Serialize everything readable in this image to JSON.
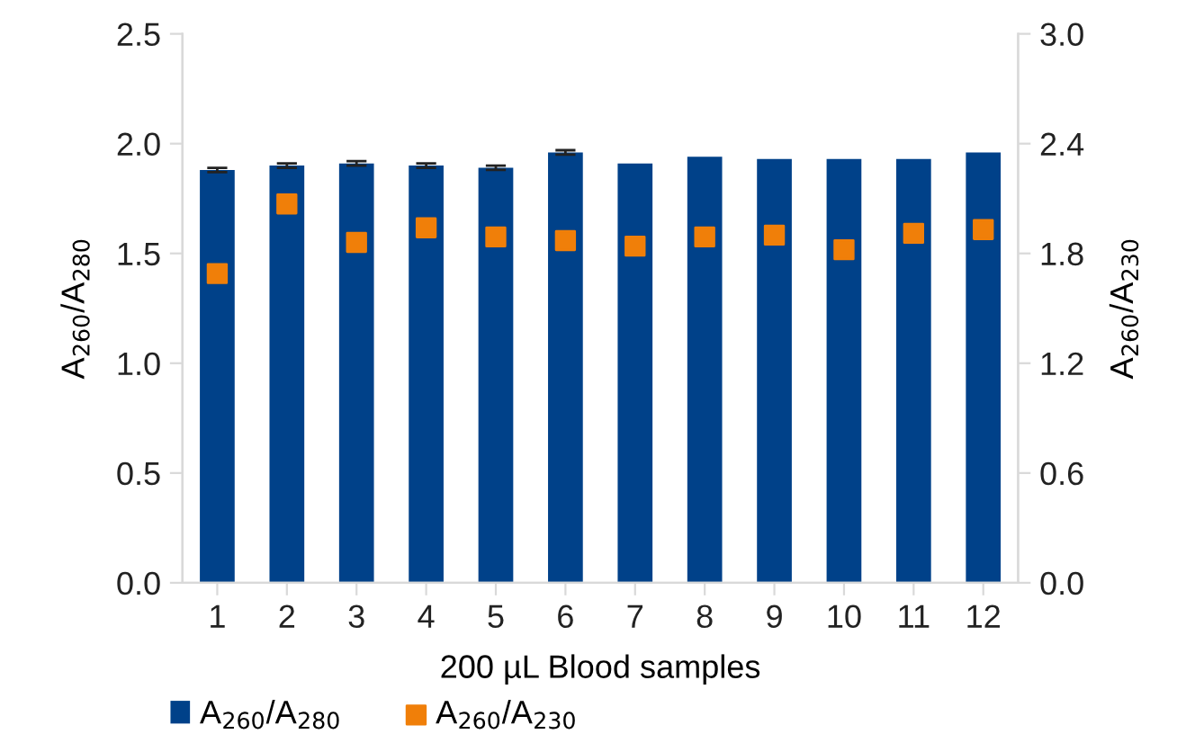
{
  "chart_data": {
    "type": "bar",
    "xlabel": "200 µL Blood samples",
    "ylabel": "A$_{260}$/A$_{280}$",
    "y2label": "A$_{260}$/A$_{230}$",
    "categories": [
      "1",
      "2",
      "3",
      "4",
      "5",
      "6",
      "7",
      "8",
      "9",
      "10",
      "11",
      "12"
    ],
    "series": [
      {
        "name": "A$_{260}$/A$_{280}$",
        "color": "#004189",
        "values": [
          1.88,
          1.9,
          1.91,
          1.9,
          1.89,
          1.96,
          1.91,
          1.94,
          1.93,
          1.93,
          1.93,
          1.96
        ],
        "errors": [
          0.01,
          0.01,
          0.01,
          0.01,
          0.01,
          0.01,
          null,
          null,
          null,
          null,
          null,
          null
        ]
      },
      {
        "name": "A$_{260}$/A$_{230}$",
        "type": "scatter",
        "axis": "y2",
        "marker": "square",
        "color": "#f07f09",
        "x": [
          "1",
          "2",
          "3",
          "4",
          "5",
          "6",
          "7",
          "8",
          "9",
          "10",
          "11",
          "12"
        ],
        "values": [
          1.69,
          2.07,
          1.86,
          1.94,
          1.89,
          1.87,
          1.84,
          1.89,
          1.9,
          1.82,
          1.91,
          1.93
        ]
      }
    ],
    "ylim": [
      0,
      2.5
    ],
    "yticks": [
      {
        "value": 0,
        "label": "0.0"
      },
      {
        "value": 0.5,
        "label": "0.5"
      },
      {
        "value": 1,
        "label": "1.0"
      },
      {
        "value": 1.5,
        "label": "1.5"
      },
      {
        "value": 2,
        "label": "2.0"
      },
      {
        "value": 2.5,
        "label": "2.5"
      }
    ],
    "y2lim": [
      0,
      3
    ],
    "y2ticks": [
      {
        "value": 0,
        "label": "0.0"
      },
      {
        "value": 0.6,
        "label": "0.6"
      },
      {
        "value": 1.2,
        "label": "1.2"
      },
      {
        "value": 1.8,
        "label": "1.8"
      },
      {
        "value": 2.4,
        "label": "2.4"
      },
      {
        "value": 3,
        "label": "3.0"
      }
    ],
    "legend": "bottom",
    "grid": false
  }
}
